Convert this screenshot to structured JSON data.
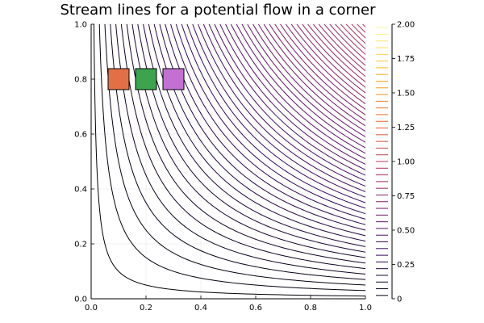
{
  "chart_data": {
    "type": "contour",
    "title": "Stream lines for a potential flow in a corner",
    "function": "x*y",
    "xlim": [
      0,
      1
    ],
    "ylim": [
      0,
      1
    ],
    "x_ticks": [
      "0.0",
      "0.2",
      "0.4",
      "0.6",
      "0.8",
      "1.0"
    ],
    "y_ticks": [
      "0.0",
      "0.2",
      "0.4",
      "0.6",
      "0.8",
      "1.0"
    ],
    "levels": [
      0.01,
      0.03,
      0.05,
      0.07,
      0.09,
      0.11,
      0.13,
      0.15,
      0.17,
      0.19,
      0.21,
      0.23,
      0.25,
      0.27,
      0.29,
      0.31,
      0.33,
      0.35,
      0.37,
      0.39,
      0.41,
      0.43,
      0.45,
      0.47,
      0.49,
      0.51,
      0.53,
      0.55,
      0.57,
      0.59,
      0.61,
      0.63,
      0.65,
      0.67,
      0.69,
      0.71,
      0.73,
      0.75,
      0.77,
      0.79,
      0.81,
      0.83,
      0.85,
      0.87,
      0.89,
      0.91,
      0.93,
      0.95,
      0.97,
      0.99
    ],
    "colorbar": {
      "range": [
        0,
        2
      ],
      "ticks": [
        "0",
        "0.25",
        "0.50",
        "0.75",
        "1.00",
        "1.25",
        "1.50",
        "1.75",
        "2.00"
      ],
      "colormap": [
        "#000004",
        "#330a5f",
        "#781c6d",
        "#bb3755",
        "#ed6925",
        "#fbb61a",
        "#fcffa4"
      ]
    },
    "grid": true,
    "markers": [
      {
        "x": 0.1,
        "y": 0.8,
        "color": "#e26f46"
      },
      {
        "x": 0.2,
        "y": 0.8,
        "color": "#3da44d"
      },
      {
        "x": 0.3,
        "y": 0.8,
        "color": "#c271d2"
      }
    ]
  }
}
